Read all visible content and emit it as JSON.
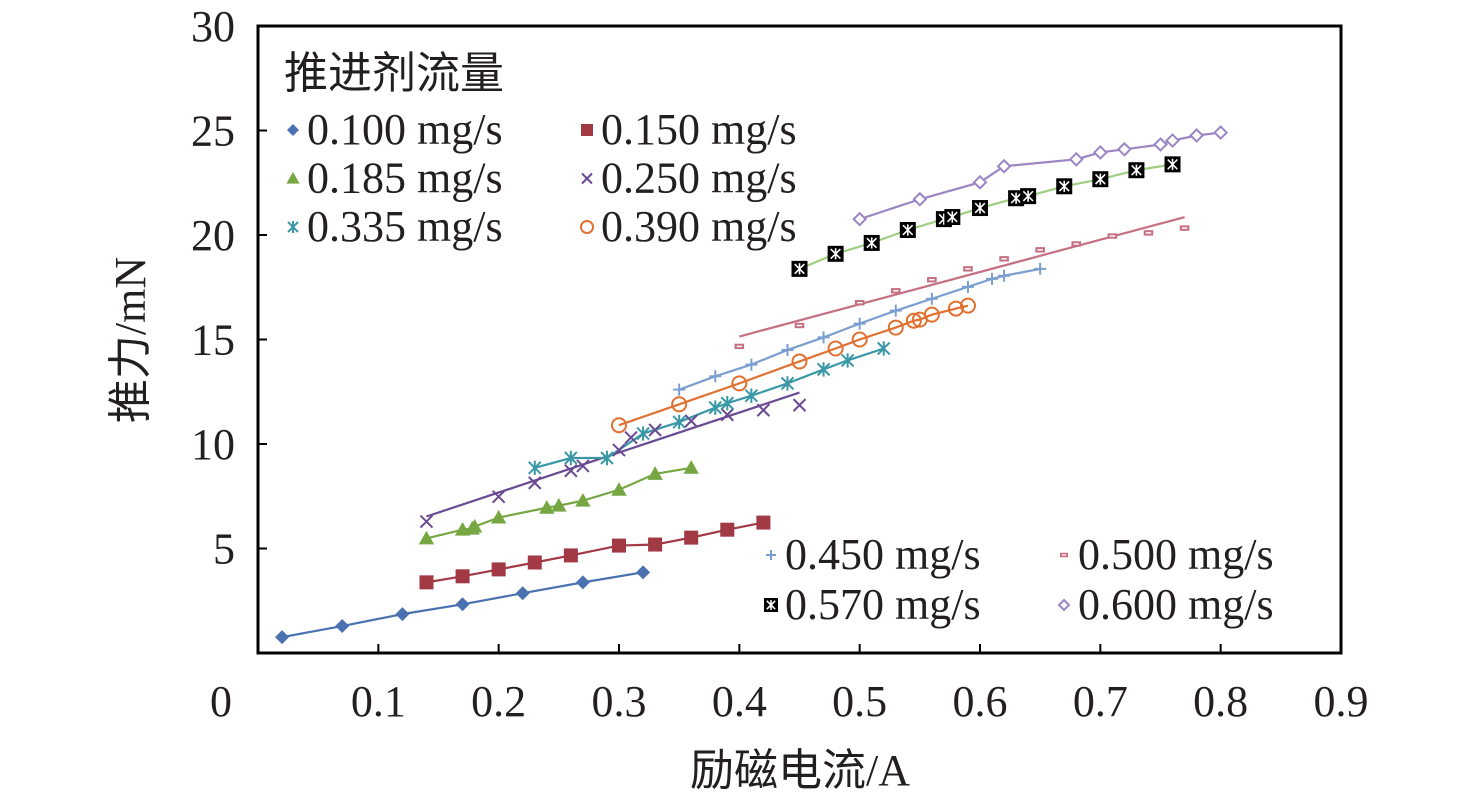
{
  "chart_data": {
    "type": "scatter",
    "title": "",
    "xlabel": "励磁电流/A",
    "ylabel": "推力/mN",
    "xlim": [
      0,
      0.9
    ],
    "ylim": [
      0,
      30
    ],
    "x_ticks": [
      "0.1",
      "0.2",
      "0.3",
      "0.4",
      "0.5",
      "0.6",
      "0.7",
      "0.8",
      "0.9"
    ],
    "x_tick_values": [
      0.1,
      0.2,
      0.3,
      0.4,
      0.5,
      0.6,
      0.7,
      0.8,
      0.9
    ],
    "y_ticks": [
      "5",
      "10",
      "15",
      "20",
      "25",
      "30"
    ],
    "y_tick_values": [
      5,
      10,
      15,
      20,
      25,
      30
    ],
    "origin_label": "0",
    "grid": false,
    "legend_title": "推进剂流量",
    "legend_placement": [
      "top-left",
      "bottom-right"
    ],
    "series": [
      {
        "name": "0.100 mg/s",
        "marker": "diamond",
        "color": "#4a72b0",
        "line": "connect",
        "legend_group": 0,
        "x": [
          0.02,
          0.07,
          0.12,
          0.17,
          0.22,
          0.27,
          0.32
        ],
        "y": [
          0.76,
          1.29,
          1.86,
          2.33,
          2.86,
          3.38,
          3.86
        ]
      },
      {
        "name": "0.150 mg/s",
        "marker": "square",
        "color": "#a13a45",
        "line": "connect",
        "legend_group": 0,
        "x": [
          0.14,
          0.17,
          0.2,
          0.23,
          0.26,
          0.3,
          0.33,
          0.36,
          0.39,
          0.42
        ],
        "y": [
          3.38,
          3.67,
          4.0,
          4.33,
          4.67,
          5.14,
          5.19,
          5.52,
          5.9,
          6.24
        ]
      },
      {
        "name": "0.185 mg/s",
        "marker": "triangle",
        "color": "#77a743",
        "line": "connect",
        "legend_group": 0,
        "x": [
          0.14,
          0.17,
          0.178,
          0.18,
          0.2,
          0.24,
          0.25,
          0.27,
          0.3,
          0.33,
          0.36
        ],
        "y": [
          5.48,
          5.9,
          5.95,
          6.05,
          6.48,
          6.95,
          7.05,
          7.29,
          7.81,
          8.57,
          8.86
        ]
      },
      {
        "name": "0.250 mg/s",
        "marker": "x",
        "color": "#6a4a93",
        "line": "fit",
        "legend_group": 0,
        "x": [
          0.14,
          0.2,
          0.23,
          0.26,
          0.27,
          0.3,
          0.31,
          0.33,
          0.36,
          0.39,
          0.42,
          0.45
        ],
        "y": [
          6.29,
          7.48,
          8.14,
          8.72,
          8.95,
          9.71,
          10.31,
          10.67,
          11.1,
          11.4,
          11.62,
          11.86
        ]
      },
      {
        "name": "0.335 mg/s",
        "marker": "asterisk",
        "color": "#3a98a6",
        "line": "connect",
        "legend_group": 0,
        "x": [
          0.23,
          0.26,
          0.29,
          0.32,
          0.35,
          0.38,
          0.39,
          0.41,
          0.44,
          0.47,
          0.49,
          0.52
        ],
        "y": [
          8.86,
          9.33,
          9.33,
          10.5,
          11.05,
          11.74,
          11.95,
          12.31,
          12.9,
          13.57,
          14.0,
          14.57
        ]
      },
      {
        "name": "0.390 mg/s",
        "marker": "circle",
        "color": "#e07030",
        "line": "connect",
        "legend_group": 0,
        "x": [
          0.3,
          0.35,
          0.4,
          0.45,
          0.48,
          0.5,
          0.53,
          0.545,
          0.55,
          0.56,
          0.58,
          0.59
        ],
        "y": [
          10.9,
          11.9,
          12.9,
          13.95,
          14.57,
          15.0,
          15.57,
          15.9,
          15.95,
          16.19,
          16.48,
          16.62
        ]
      },
      {
        "name": "0.450 mg/s",
        "marker": "plus",
        "color": "#7b9ed0",
        "line": "connect",
        "legend_group": 1,
        "x": [
          0.35,
          0.38,
          0.41,
          0.44,
          0.47,
          0.5,
          0.53,
          0.56,
          0.59,
          0.61,
          0.62,
          0.65
        ],
        "y": [
          12.6,
          13.24,
          13.8,
          14.5,
          15.1,
          15.76,
          16.38,
          16.95,
          17.52,
          17.9,
          18.05,
          18.38
        ]
      },
      {
        "name": "0.500 mg/s",
        "marker": "dash-box",
        "color": "#c56f82",
        "line": "fit",
        "legend_group": 1,
        "x": [
          0.4,
          0.45,
          0.5,
          0.53,
          0.56,
          0.59,
          0.62,
          0.65,
          0.68,
          0.71,
          0.74,
          0.77
        ],
        "y": [
          14.67,
          15.67,
          16.76,
          17.33,
          17.86,
          18.38,
          18.86,
          19.29,
          19.57,
          19.95,
          20.1,
          20.33
        ]
      },
      {
        "name": "0.570 mg/s",
        "marker": "x-box",
        "color": "#000000",
        "line_color": "#9fce82",
        "line": "connect",
        "legend_group": 1,
        "x": [
          0.45,
          0.48,
          0.51,
          0.54,
          0.57,
          0.577,
          0.6,
          0.63,
          0.64,
          0.67,
          0.7,
          0.73,
          0.76
        ],
        "y": [
          18.38,
          19.1,
          19.62,
          20.24,
          20.76,
          20.86,
          21.29,
          21.76,
          21.86,
          22.33,
          22.67,
          23.1,
          23.38
        ]
      },
      {
        "name": "0.600 mg/s",
        "marker": "open-diamond",
        "color": "#9b86c4",
        "line": "connect",
        "legend_group": 1,
        "x": [
          0.5,
          0.55,
          0.6,
          0.62,
          0.68,
          0.7,
          0.72,
          0.75,
          0.76,
          0.78,
          0.8
        ],
        "y": [
          20.76,
          21.71,
          22.52,
          23.29,
          23.62,
          23.95,
          24.1,
          24.33,
          24.52,
          24.76,
          24.9
        ]
      }
    ]
  }
}
